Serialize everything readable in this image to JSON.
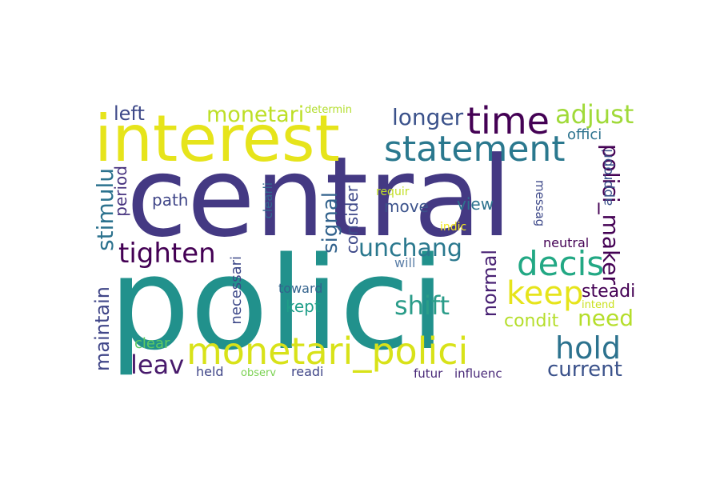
{
  "wordcloud": {
    "words": [
      {
        "text": "central",
        "color": "#443983"
      },
      {
        "text": "polici",
        "color": "#21918c"
      },
      {
        "text": "interest",
        "color": "#e6e41b"
      },
      {
        "text": "statement",
        "color": "#2a788e"
      },
      {
        "text": "time",
        "color": "#440154"
      },
      {
        "text": "monetari_polici",
        "color": "#d8e219"
      },
      {
        "text": "decis",
        "color": "#22a884"
      },
      {
        "text": "hold",
        "color": "#2c728e"
      },
      {
        "text": "keep",
        "color": "#e6e41b"
      },
      {
        "text": "tighten",
        "color": "#440154"
      },
      {
        "text": "adjust",
        "color": "#a0da39"
      },
      {
        "text": "shift",
        "color": "#2a9c89"
      },
      {
        "text": "need",
        "color": "#b5de2b"
      },
      {
        "text": "unchang",
        "color": "#2a788e"
      },
      {
        "text": "longer",
        "color": "#3b528b"
      },
      {
        "text": "monetari",
        "color": "#bddf26"
      },
      {
        "text": "leav",
        "color": "#481a6c"
      },
      {
        "text": "current",
        "color": "#3b528b"
      },
      {
        "text": "polici_maker",
        "color": "#440154"
      },
      {
        "text": "signal",
        "color": "#33638d"
      },
      {
        "text": "stimulu",
        "color": "#2c728e"
      },
      {
        "text": "maintain",
        "color": "#404688"
      },
      {
        "text": "normal",
        "color": "#482173"
      },
      {
        "text": "steadi",
        "color": "#440154"
      },
      {
        "text": "condit",
        "color": "#b5de2b"
      },
      {
        "text": "left",
        "color": "#3e4989"
      },
      {
        "text": "path",
        "color": "#404688"
      },
      {
        "text": "move",
        "color": "#3b528b"
      },
      {
        "text": "view",
        "color": "#2c728e"
      },
      {
        "text": "kept",
        "color": "#1f9e89"
      },
      {
        "text": "period",
        "color": "#46327e"
      },
      {
        "text": "consider",
        "color": "#3e4989"
      },
      {
        "text": "clear",
        "color": "#5ec962"
      },
      {
        "text": "necessari",
        "color": "#3e4989"
      },
      {
        "text": "toward",
        "color": "#33638d"
      },
      {
        "text": "offici",
        "color": "#2c728e"
      },
      {
        "text": "appropri",
        "color": "#3b528b"
      },
      {
        "text": "neutral",
        "color": "#440154"
      },
      {
        "text": "held",
        "color": "#404688"
      },
      {
        "text": "readi",
        "color": "#404688"
      },
      {
        "text": "futur",
        "color": "#482878"
      },
      {
        "text": "influenc",
        "color": "#482878"
      },
      {
        "text": "will",
        "color": "#5c7fa8"
      },
      {
        "text": "messag",
        "color": "#3e4989"
      },
      {
        "text": "clearli",
        "color": "#31688e"
      },
      {
        "text": "requir",
        "color": "#c2df23"
      },
      {
        "text": "indic",
        "color": "#f1e51d"
      },
      {
        "text": "determin",
        "color": "#b2dd2c"
      },
      {
        "text": "observ",
        "color": "#7ad151"
      },
      {
        "text": "intend",
        "color": "#cae11f"
      }
    ]
  }
}
